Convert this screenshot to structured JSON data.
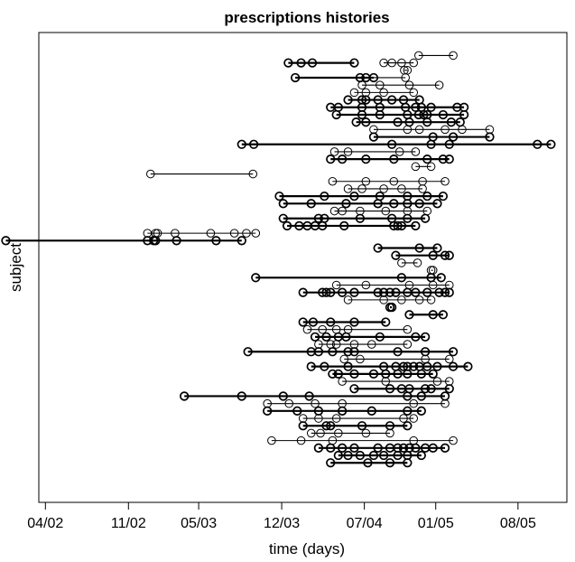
{
  "chart_data": {
    "type": "line",
    "title": "prescriptions histories",
    "xlabel": "time (days)",
    "ylabel": "subject",
    "x_ticks": [
      "04/02",
      "11/02",
      "05/03",
      "12/03",
      "07/04",
      "01/05",
      "08/05"
    ],
    "x_tick_dates": [
      "2002-04-01",
      "2002-11-01",
      "2003-05-01",
      "2003-12-01",
      "2004-07-01",
      "2005-01-01",
      "2005-08-01"
    ],
    "xlim": [
      "2002-03-15",
      "2005-12-05"
    ],
    "ylim": [
      0,
      61
    ],
    "grid": false,
    "legend": "none",
    "series": [
      {
        "y": 59,
        "dates": [
          "2004-11-18",
          "2005-02-15"
        ],
        "style": "thin"
      },
      {
        "y": 58,
        "dates": [
          "2003-12-18",
          "2004-01-20",
          "2004-02-18",
          "2004-06-05"
        ],
        "style": "thick"
      },
      {
        "y": 58,
        "dates": [
          "2004-08-20",
          "2004-09-10",
          "2004-10-05",
          "2004-11-05"
        ],
        "style": "thin"
      },
      {
        "y": 57,
        "dates": [
          "2004-10-12",
          "2004-10-20"
        ],
        "style": "thin"
      },
      {
        "y": 56,
        "dates": [
          "2004-01-05",
          "2004-06-20",
          "2004-07-05",
          "2004-07-25"
        ],
        "style": "thick"
      },
      {
        "y": 56,
        "dates": [
          "2004-01-05",
          "2004-10-15"
        ],
        "style": "thin"
      },
      {
        "y": 55,
        "dates": [
          "2004-06-25",
          "2004-08-10",
          "2004-10-25",
          "2005-01-10"
        ],
        "style": "thin"
      },
      {
        "y": 54,
        "dates": [
          "2004-06-05",
          "2004-07-05",
          "2004-08-20",
          "2004-11-05"
        ],
        "style": "thin"
      },
      {
        "y": 53,
        "dates": [
          "2004-05-20",
          "2004-06-25",
          "2004-07-05",
          "2004-08-05",
          "2004-09-10",
          "2004-10-10",
          "2004-11-20"
        ],
        "style": "thick"
      },
      {
        "y": 52,
        "dates": [
          "2004-04-05",
          "2004-04-25",
          "2004-06-25",
          "2004-08-10",
          "2004-10-15",
          "2004-11-10",
          "2004-11-25",
          "2004-12-20",
          "2005-02-25",
          "2005-03-15"
        ],
        "style": "thick"
      },
      {
        "y": 51,
        "dates": [
          "2004-04-20",
          "2004-06-25",
          "2004-08-10",
          "2004-10-20",
          "2004-11-18",
          "2004-12-01",
          "2004-12-10",
          "2005-01-20",
          "2005-03-15"
        ],
        "style": "thick"
      },
      {
        "y": 50,
        "dates": [
          "2004-06-10",
          "2004-07-05",
          "2004-09-25",
          "2004-10-25",
          "2004-12-10",
          "2005-02-10",
          "2005-03-05"
        ],
        "style": "thick"
      },
      {
        "y": 49,
        "dates": [
          "2004-07-25",
          "2004-10-20",
          "2004-11-20",
          "2005-01-25",
          "2005-03-10",
          "2005-05-20"
        ],
        "style": "thin"
      },
      {
        "y": 48,
        "dates": [
          "2004-07-25",
          "2004-12-25",
          "2005-02-15",
          "2005-05-20"
        ],
        "style": "thick"
      },
      {
        "y": 47,
        "dates": [
          "2003-08-20",
          "2003-09-20",
          "2004-09-10",
          "2004-12-20",
          "2005-02-05",
          "2005-09-20",
          "2005-10-25"
        ],
        "style": "thick"
      },
      {
        "y": 46,
        "dates": [
          "2004-04-15",
          "2004-05-20",
          "2004-09-30",
          "2004-11-10"
        ],
        "style": "thin"
      },
      {
        "y": 45,
        "dates": [
          "2004-04-05",
          "2004-05-05",
          "2004-07-05",
          "2004-09-15",
          "2004-12-10",
          "2005-01-20",
          "2005-02-05"
        ],
        "style": "thick"
      },
      {
        "y": 44,
        "dates": [
          "2004-11-10",
          "2004-12-20"
        ],
        "style": "thin"
      },
      {
        "y": 43,
        "dates": [
          "2002-12-28",
          "2003-09-18"
        ],
        "style": "thin"
      },
      {
        "y": 42,
        "dates": [
          "2004-04-10",
          "2004-07-05",
          "2004-09-15",
          "2004-11-28",
          "2005-01-25"
        ],
        "style": "thin"
      },
      {
        "y": 41,
        "dates": [
          "2004-05-20",
          "2004-06-25",
          "2004-08-20",
          "2004-10-05",
          "2004-11-28"
        ],
        "style": "thin"
      },
      {
        "y": 40,
        "dates": [
          "2003-11-25",
          "2004-03-20",
          "2004-06-05",
          "2004-08-10",
          "2004-10-20",
          "2004-12-10",
          "2005-01-20"
        ],
        "style": "thick"
      },
      {
        "y": 39,
        "dates": [
          "2003-12-05",
          "2004-02-15",
          "2004-05-15",
          "2004-08-05",
          "2004-09-15",
          "2004-10-20",
          "2004-11-20",
          "2005-01-05"
        ],
        "style": "thick"
      },
      {
        "y": 38,
        "dates": [
          "2004-04-15",
          "2004-05-05",
          "2004-06-20",
          "2004-08-25",
          "2004-10-20",
          "2004-12-10"
        ],
        "style": "thin"
      },
      {
        "y": 37,
        "dates": [
          "2003-12-05",
          "2004-03-05",
          "2004-03-20",
          "2004-06-20",
          "2004-09-10",
          "2004-10-20",
          "2004-12-05"
        ],
        "style": "thick"
      },
      {
        "y": 36,
        "dates": [
          "2003-12-15",
          "2004-01-15",
          "2004-02-05",
          "2004-02-25",
          "2004-03-15",
          "2004-05-10",
          "2004-09-15",
          "2004-09-25",
          "2004-10-05",
          "2004-11-10"
        ],
        "style": "thick"
      },
      {
        "y": 35,
        "dates": [
          "2002-12-20",
          "2003-01-10",
          "2003-01-15",
          "2003-03-01",
          "2003-06-01",
          "2003-08-01",
          "2003-09-01",
          "2003-09-25"
        ],
        "style": "thin"
      },
      {
        "y": 34,
        "dates": [
          "2001-12-20",
          "2002-12-20",
          "2003-01-05",
          "2003-01-10",
          "2003-03-05",
          "2003-06-15",
          "2003-08-20"
        ],
        "style": "thick"
      },
      {
        "y": 33,
        "dates": [
          "2004-08-05",
          "2004-11-20",
          "2005-01-05"
        ],
        "style": "thick"
      },
      {
        "y": 32,
        "dates": [
          "2004-09-20",
          "2004-12-25",
          "2005-01-25",
          "2005-02-05"
        ],
        "style": "thick"
      },
      {
        "y": 31,
        "dates": [
          "2004-10-05",
          "2004-11-15"
        ],
        "style": "thin"
      },
      {
        "y": 30,
        "dates": [
          "2004-12-20",
          "2004-12-25"
        ],
        "style": "thin"
      },
      {
        "y": 29,
        "dates": [
          "2003-09-25",
          "2004-10-05",
          "2004-12-20",
          "2005-01-15"
        ],
        "style": "thick"
      },
      {
        "y": 28,
        "dates": [
          "2004-04-20",
          "2004-07-05",
          "2004-10-25",
          "2004-12-25",
          "2005-02-05"
        ],
        "style": "thin"
      },
      {
        "y": 27,
        "dates": [
          "2004-01-25",
          "2004-03-15",
          "2004-03-25",
          "2004-04-05",
          "2004-05-05",
          "2004-06-05",
          "2004-08-05",
          "2004-08-20",
          "2004-09-05",
          "2004-09-20",
          "2004-10-20",
          "2004-11-10",
          "2004-12-10",
          "2005-01-10",
          "2005-01-25",
          "2005-02-05"
        ],
        "style": "thick"
      },
      {
        "y": 26,
        "dates": [
          "2004-05-20",
          "2004-08-20",
          "2004-10-05",
          "2004-11-20",
          "2004-12-20"
        ],
        "style": "thin"
      },
      {
        "y": 25,
        "dates": [
          "2004-09-05",
          "2004-09-10"
        ],
        "style": "thick"
      },
      {
        "y": 24,
        "dates": [
          "2004-10-25",
          "2004-12-25",
          "2005-01-20"
        ],
        "style": "thick"
      },
      {
        "y": 23,
        "dates": [
          "2004-01-25",
          "2004-02-20",
          "2004-04-05",
          "2004-06-05",
          "2004-08-25"
        ],
        "style": "thick"
      },
      {
        "y": 22,
        "dates": [
          "2004-02-05",
          "2004-03-15",
          "2004-04-20",
          "2004-05-20",
          "2004-10-20"
        ],
        "style": "thin"
      },
      {
        "y": 21,
        "dates": [
          "2004-02-25",
          "2004-03-25",
          "2004-04-25",
          "2004-05-15",
          "2004-08-10",
          "2004-11-10",
          "2004-12-05"
        ],
        "style": "thick"
      },
      {
        "y": 20,
        "dates": [
          "2004-03-05",
          "2004-04-05",
          "2004-04-20",
          "2004-06-05",
          "2004-07-20",
          "2004-10-20"
        ],
        "style": "thin"
      },
      {
        "y": 19,
        "dates": [
          "2003-09-05",
          "2004-02-15",
          "2004-03-05",
          "2004-04-10",
          "2004-05-20",
          "2004-06-05",
          "2004-09-25",
          "2004-12-05",
          "2005-02-15"
        ],
        "style": "thick"
      },
      {
        "y": 18,
        "dates": [
          "2004-05-10",
          "2004-06-20",
          "2004-12-05",
          "2005-02-05"
        ],
        "style": "thin"
      },
      {
        "y": 17,
        "dates": [
          "2004-02-15",
          "2004-03-20",
          "2004-05-20",
          "2004-08-20",
          "2004-09-20",
          "2004-10-10",
          "2004-10-20",
          "2004-11-05",
          "2004-11-20",
          "2004-12-10",
          "2005-01-05",
          "2005-02-15",
          "2005-03-25"
        ],
        "style": "thick"
      },
      {
        "y": 16,
        "dates": [
          "2004-04-10",
          "2004-04-25",
          "2004-06-05",
          "2004-07-25",
          "2004-08-25",
          "2004-09-25",
          "2004-10-20",
          "2004-11-25",
          "2004-12-25"
        ],
        "style": "thick"
      },
      {
        "y": 15,
        "dates": [
          "2004-05-05",
          "2004-08-25",
          "2005-01-05",
          "2005-02-05"
        ],
        "style": "thin"
      },
      {
        "y": 14,
        "dates": [
          "2004-06-05",
          "2004-09-05",
          "2004-10-05",
          "2004-10-25",
          "2004-12-05",
          "2004-12-20",
          "2005-02-05"
        ],
        "style": "thick"
      },
      {
        "y": 13,
        "dates": [
          "2003-03-25",
          "2003-08-20",
          "2003-12-05",
          "2004-02-10",
          "2004-10-20",
          "2004-11-25",
          "2005-01-25"
        ],
        "style": "thick"
      },
      {
        "y": 12,
        "dates": [
          "2003-10-25",
          "2003-12-20",
          "2004-02-25",
          "2004-05-05",
          "2004-11-05",
          "2005-01-25"
        ],
        "style": "thin"
      },
      {
        "y": 11,
        "dates": [
          "2003-10-25",
          "2004-01-10",
          "2004-03-05",
          "2004-05-05",
          "2004-07-20",
          "2004-10-20",
          "2004-11-25"
        ],
        "style": "thick"
      },
      {
        "y": 10,
        "dates": [
          "2004-01-25",
          "2004-03-05",
          "2004-04-20",
          "2004-10-10",
          "2004-11-05"
        ],
        "style": "thin"
      },
      {
        "y": 9,
        "dates": [
          "2004-01-25",
          "2004-03-25",
          "2004-04-05",
          "2004-06-25",
          "2004-09-05",
          "2004-10-20"
        ],
        "style": "thick"
      },
      {
        "y": 8,
        "dates": [
          "2004-02-15",
          "2004-03-10",
          "2004-04-25",
          "2004-07-05",
          "2004-09-05"
        ],
        "style": "thin"
      },
      {
        "y": 7,
        "dates": [
          "2003-11-05",
          "2004-01-20",
          "2004-04-10",
          "2004-11-05",
          "2005-02-15"
        ],
        "style": "thin"
      },
      {
        "y": 6,
        "dates": [
          "2004-03-05",
          "2004-04-05",
          "2004-05-05",
          "2004-06-05",
          "2004-08-05",
          "2004-09-05",
          "2004-09-25",
          "2004-10-10",
          "2004-10-25",
          "2004-11-10",
          "2004-12-05",
          "2004-12-25",
          "2005-01-25"
        ],
        "style": "thick"
      },
      {
        "y": 5,
        "dates": [
          "2004-04-25",
          "2004-05-20",
          "2004-06-20",
          "2004-07-25",
          "2004-08-20",
          "2004-09-25",
          "2004-10-20",
          "2004-11-25"
        ],
        "style": "thick"
      },
      {
        "y": 4,
        "dates": [
          "2004-04-05",
          "2004-07-10",
          "2004-09-05",
          "2004-10-20"
        ],
        "style": "thick"
      }
    ]
  }
}
